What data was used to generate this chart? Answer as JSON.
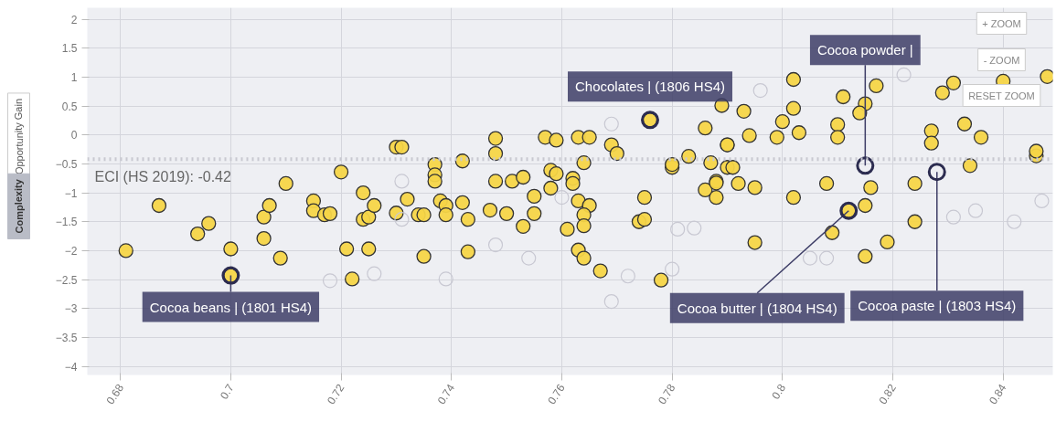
{
  "chart_data": {
    "type": "scatter",
    "xlim": [
      0.674,
      0.849
    ],
    "ylim": [
      -4.15,
      2.2
    ],
    "xticks": [
      0.68,
      0.7,
      0.72,
      0.74,
      0.76,
      0.78,
      0.8,
      0.82,
      0.84
    ],
    "yticks": [
      -4,
      -3.5,
      -3,
      -2.5,
      -2,
      -1.5,
      -1,
      -0.5,
      0,
      0.5,
      1,
      1.5,
      2
    ],
    "grid": true,
    "marker": "circle",
    "series": [
      {
        "color": "#f5d547",
        "x": [
          0.681,
          0.687,
          0.696,
          0.694,
          0.7,
          0.7,
          0.706,
          0.707,
          0.709,
          0.71,
          0.706,
          0.715,
          0.715,
          0.717,
          0.718,
          0.72,
          0.721,
          0.722,
          0.725,
          0.724,
          0.724,
          0.725,
          0.726,
          0.73,
          0.73,
          0.731,
          0.732,
          0.734,
          0.735,
          0.737,
          0.737,
          0.737,
          0.738,
          0.739,
          0.739,
          0.742,
          0.742,
          0.743,
          0.735,
          0.743,
          0.748,
          0.748,
          0.747,
          0.748,
          0.75,
          0.751,
          0.753,
          0.753,
          0.755,
          0.755,
          0.757,
          0.759,
          0.758,
          0.759,
          0.758,
          0.762,
          0.762,
          0.761,
          0.763,
          0.765,
          0.764,
          0.763,
          0.765,
          0.764,
          0.764,
          0.763,
          0.764,
          0.767,
          0.769,
          0.77,
          0.775,
          0.774,
          0.775,
          0.776,
          0.778,
          0.78,
          0.78,
          0.783,
          0.787,
          0.786,
          0.789,
          0.79,
          0.79,
          0.786,
          0.788,
          0.788,
          0.788,
          0.793,
          0.8,
          0.794,
          0.799,
          0.803,
          0.81,
          0.81,
          0.827,
          0.833,
          0.836,
          0.827,
          0.808,
          0.834,
          0.816,
          0.824,
          0.802,
          0.802,
          0.811,
          0.817,
          0.815,
          0.814,
          0.829,
          0.831,
          0.84,
          0.848,
          0.79,
          0.791,
          0.792,
          0.795,
          0.802,
          0.812,
          0.815,
          0.809,
          0.824,
          0.795,
          0.815,
          0.819,
          0.846,
          0.846
        ],
        "values": [
          -2.0,
          -1.22,
          -1.53,
          -1.71,
          -1.97,
          -2.43,
          -1.42,
          -1.22,
          -2.13,
          -0.84,
          -1.79,
          -1.14,
          -1.31,
          -1.38,
          -1.36,
          -0.64,
          -1.97,
          -2.49,
          -1.97,
          -1.0,
          -1.46,
          -1.42,
          -1.22,
          -0.21,
          -1.35,
          -0.21,
          -1.11,
          -1.38,
          -1.38,
          -0.51,
          -0.69,
          -0.8,
          -1.14,
          -1.22,
          -1.38,
          -0.45,
          -1.17,
          -1.46,
          -2.1,
          -2.02,
          -0.06,
          -0.32,
          -1.3,
          -0.8,
          -1.36,
          -0.8,
          -0.73,
          -1.58,
          -1.36,
          -1.06,
          -0.04,
          -0.09,
          -0.61,
          -0.67,
          -0.92,
          -0.75,
          -0.84,
          -1.63,
          -0.04,
          -0.04,
          -0.48,
          -1.14,
          -1.22,
          -1.38,
          -1.57,
          -1.99,
          -2.13,
          -2.35,
          -0.17,
          -0.32,
          -1.08,
          -1.5,
          -1.46,
          0.26,
          -2.51,
          -0.56,
          -0.51,
          -0.37,
          -0.48,
          0.12,
          0.51,
          -0.17,
          -0.56,
          -0.95,
          -0.8,
          -0.83,
          -1.08,
          0.41,
          0.23,
          -0.01,
          -0.04,
          0.04,
          0.18,
          -0.04,
          0.07,
          0.19,
          -0.04,
          -0.14,
          -0.84,
          -0.53,
          -0.91,
          -0.84,
          0.96,
          0.46,
          0.66,
          0.85,
          0.54,
          0.38,
          0.73,
          0.9,
          0.93,
          1.01,
          -0.17,
          -0.56,
          -0.84,
          -0.91,
          -1.08,
          -1.31,
          -1.22,
          -1.69,
          -1.5,
          -1.86,
          -2.1,
          -1.85,
          -0.36,
          -0.28
        ]
      },
      {
        "color": "#c8c8d2",
        "x": [
          0.76,
          0.769,
          0.748,
          0.754,
          0.739,
          0.769,
          0.772,
          0.78,
          0.784,
          0.781,
          0.805,
          0.808,
          0.842,
          0.847,
          0.835,
          0.831,
          0.822,
          0.796,
          0.718,
          0.726,
          0.731,
          0.731
        ],
        "values": [
          -1.08,
          0.19,
          -1.9,
          -2.13,
          -2.49,
          -2.88,
          -2.44,
          -2.32,
          -1.61,
          -1.63,
          -2.13,
          -2.13,
          -1.5,
          -1.14,
          -1.31,
          -1.42,
          1.04,
          0.77,
          -2.52,
          -2.4,
          -0.8,
          -1.46
        ]
      }
    ],
    "ref_lines": [
      {
        "axis": "y",
        "value": -0.42,
        "label": "ECI (HS 2019): -0.42",
        "color": "#c8c8d0",
        "line_style": "dotted"
      }
    ],
    "annotations": [
      {
        "text": "Cocoa beans | (1801 HS4)",
        "x": 0.7,
        "y": -2.43
      },
      {
        "text": "Chocolates | (1806 HS4)",
        "x": 0.776,
        "y": 0.26
      },
      {
        "text": "Cocoa powder |",
        "x": 0.815,
        "y": -0.53
      },
      {
        "text": "Cocoa butter | (1804 HS4)",
        "x": 0.812,
        "y": -1.31
      },
      {
        "text": "Cocoa paste | (1803 HS4)",
        "x": 0.828,
        "y": -0.64
      },
      "+ ZOOM",
      "- ZOOM",
      "RESET ZOOM",
      "Opportunity Gain",
      "Complexity"
    ]
  }
}
